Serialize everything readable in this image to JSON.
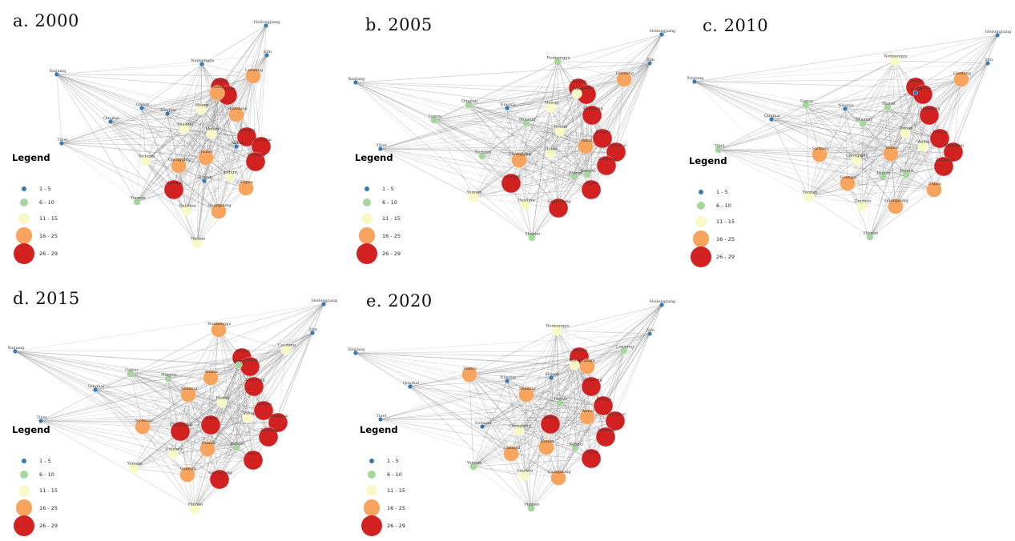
{
  "figure": {
    "background": "#ffffff",
    "edge_color": "#949494",
    "label_color": "#3a3a3a"
  },
  "legend": {
    "title": "Legend",
    "items": [
      {
        "label": "1 - 5",
        "color": "#3779b5",
        "radius": 3.4
      },
      {
        "label": "6 - 10",
        "color": "#a6d69e",
        "radius": 5
      },
      {
        "label": "11 - 15",
        "color": "#f9f9c8",
        "radius": 7
      },
      {
        "label": "16 - 25",
        "color": "#f7a55e",
        "radius": 10.3
      },
      {
        "label": "26 - 29",
        "color": "#d12121",
        "radius": 13
      }
    ]
  },
  "node_radii": [
    2.8,
    4.5,
    6.5,
    9.5,
    12
  ],
  "panels": [
    {
      "id": "a",
      "title": "a. 2000",
      "seed": 1,
      "nodes": [
        [
          "Heilongjiang",
          332,
          32,
          0
        ],
        [
          "Jilin",
          333,
          69,
          0
        ],
        [
          "Neimenggu",
          252,
          80,
          0
        ],
        [
          "Liaoning",
          316,
          95,
          3
        ],
        [
          "Xinjiang",
          71,
          93,
          0
        ],
        [
          "Beijing",
          275,
          109,
          4
        ],
        [
          "Hebei",
          271,
          116,
          3
        ],
        [
          "Tianjin",
          284,
          119,
          4
        ],
        [
          "Shanxi",
          251,
          137,
          2
        ],
        [
          "Gansu",
          177,
          135,
          0
        ],
        [
          "Ningxia",
          209,
          142,
          0
        ],
        [
          "Qinghai",
          138,
          152,
          0
        ],
        [
          "Tibet",
          77,
          179,
          0
        ],
        [
          "Shandong",
          295,
          143,
          3
        ],
        [
          "Shaanxi",
          230,
          161,
          2
        ],
        [
          "Henan",
          264,
          167,
          2
        ],
        [
          "Jiangsu",
          308,
          171,
          4
        ],
        [
          "Anhui",
          295,
          183,
          0
        ],
        [
          "Shanghai",
          326,
          183,
          4
        ],
        [
          "Zhejiang",
          319,
          202,
          4
        ],
        [
          "Hubei",
          257,
          197,
          3
        ],
        [
          "Sichuan",
          182,
          201,
          2
        ],
        [
          "Chongqing",
          223,
          207,
          3
        ],
        [
          "Hunan",
          255,
          226,
          0
        ],
        [
          "Jiangxi",
          287,
          221,
          2
        ],
        [
          "Fujian",
          307,
          235,
          3
        ],
        [
          "Guangxi",
          217,
          237,
          4
        ],
        [
          "Yunnan",
          171,
          252,
          1
        ],
        [
          "Guizhou",
          233,
          263,
          2
        ],
        [
          "Guangdong",
          273,
          264,
          3
        ],
        [
          "Hainan",
          246,
          304,
          2
        ]
      ]
    },
    {
      "id": "b",
      "title": "b. 2005",
      "seed": 2,
      "nodes": [
        [
          "Heilongjiang",
          826,
          43,
          0
        ],
        [
          "Jilin",
          811,
          79,
          0
        ],
        [
          "Liaoning",
          779,
          99,
          3
        ],
        [
          "Neimenggu",
          696,
          77,
          1
        ],
        [
          "Xinjiang",
          444,
          103,
          0
        ],
        [
          "Qinghai",
          585,
          131,
          1
        ],
        [
          "Gansu",
          542,
          150,
          1
        ],
        [
          "Ningxia",
          633,
          135,
          0
        ],
        [
          "Tibet",
          475,
          186,
          0
        ],
        [
          "Beijing",
          722,
          110,
          4
        ],
        [
          "Hebei",
          720,
          117,
          2
        ],
        [
          "Tianjin",
          732,
          118,
          4
        ],
        [
          "Shanxi",
          687,
          134,
          2
        ],
        [
          "Shandong",
          739,
          144,
          4
        ],
        [
          "Shaanxi",
          657,
          154,
          1
        ],
        [
          "Henan",
          699,
          164,
          2
        ],
        [
          "Jiangsu",
          752,
          173,
          4
        ],
        [
          "Anhui",
          731,
          183,
          3
        ],
        [
          "Shanghai",
          769,
          190,
          4
        ],
        [
          "Zhejiang",
          757,
          207,
          4
        ],
        [
          "Hubei",
          687,
          192,
          2
        ],
        [
          "Chongqing",
          648,
          200,
          3
        ],
        [
          "Sichuan",
          602,
          195,
          1
        ],
        [
          "Hunan",
          717,
          221,
          1
        ],
        [
          "Jiangxi",
          733,
          218,
          1
        ],
        [
          "Fujian",
          738,
          237,
          4
        ],
        [
          "Guangxi",
          638,
          229,
          4
        ],
        [
          "Guizhou",
          656,
          256,
          2
        ],
        [
          "Yunnan",
          591,
          246,
          2
        ],
        [
          "Guangdong",
          697,
          260,
          4
        ],
        [
          "Hainan",
          664,
          297,
          1
        ]
      ]
    },
    {
      "id": "c",
      "title": "c. 2010",
      "seed": 3,
      "nodes": [
        [
          "Heilongjiang",
          1245,
          44,
          0
        ],
        [
          "Jilin",
          1233,
          79,
          0
        ],
        [
          "Liaoning",
          1200,
          99,
          3
        ],
        [
          "Neimenggu",
          1117,
          76,
          2
        ],
        [
          "Xinjiang",
          867,
          102,
          0
        ],
        [
          "Qinghai",
          963,
          149,
          0
        ],
        [
          "Gansu",
          1006,
          131,
          1
        ],
        [
          "Ningxia",
          1055,
          136,
          0
        ],
        [
          "Tibet",
          897,
          187,
          1
        ],
        [
          "Beijing",
          1143,
          109,
          4
        ],
        [
          "Hebei",
          1143,
          116,
          0
        ],
        [
          "Tianjin",
          1152,
          118,
          4
        ],
        [
          "Shanxi",
          1108,
          134,
          1
        ],
        [
          "Shandong",
          1160,
          144,
          4
        ],
        [
          "Shaanxi",
          1077,
          154,
          1
        ],
        [
          "Henan",
          1130,
          166,
          2
        ],
        [
          "Jiangsu",
          1173,
          173,
          4
        ],
        [
          "Anhui",
          1152,
          183,
          2
        ],
        [
          "Shanghai",
          1190,
          190,
          4
        ],
        [
          "Zhejiang",
          1178,
          208,
          4
        ],
        [
          "Hubei",
          1112,
          192,
          3
        ],
        [
          "Chongqing",
          1069,
          200,
          2
        ],
        [
          "Sichuan",
          1023,
          193,
          3
        ],
        [
          "Hunan",
          1102,
          221,
          1
        ],
        [
          "Jiangxi",
          1131,
          218,
          1
        ],
        [
          "Fujian",
          1166,
          237,
          3
        ],
        [
          "Guangxi",
          1058,
          229,
          3
        ],
        [
          "Guizhou",
          1076,
          257,
          2
        ],
        [
          "Yunnan",
          1010,
          246,
          2
        ],
        [
          "Guangdong",
          1118,
          258,
          3
        ],
        [
          "Hainan",
          1086,
          296,
          1
        ]
      ]
    },
    {
      "id": "d",
      "title": "d. 2015",
      "seed": 4,
      "nodes": [
        [
          "Heilongjiang",
          404,
          380,
          0
        ],
        [
          "Jilin",
          390,
          416,
          0
        ],
        [
          "Liaoning",
          357,
          437,
          2
        ],
        [
          "Neimenggu",
          273,
          412,
          3
        ],
        [
          "Xinjiang",
          19,
          439,
          0
        ],
        [
          "Tibet",
          51,
          526,
          0
        ],
        [
          "Qinghai",
          119,
          487,
          0
        ],
        [
          "Gansu",
          163,
          467,
          1
        ],
        [
          "Ningxia",
          210,
          473,
          1
        ],
        [
          "Beijing",
          302,
          447,
          4
        ],
        [
          "Hebei",
          298,
          456,
          1
        ],
        [
          "Tianjin",
          312,
          458,
          4
        ],
        [
          "Shanxi",
          263,
          472,
          3
        ],
        [
          "Shandong",
          317,
          483,
          4
        ],
        [
          "Shaanxi",
          235,
          493,
          3
        ],
        [
          "Henan",
          277,
          503,
          2
        ],
        [
          "Jiangsu",
          329,
          513,
          4
        ],
        [
          "Anhui",
          309,
          522,
          2
        ],
        [
          "Shanghai",
          347,
          528,
          4
        ],
        [
          "Zhejiang",
          335,
          546,
          4
        ],
        [
          "Hubei",
          263,
          531,
          4
        ],
        [
          "Chongqing",
          225,
          539,
          4
        ],
        [
          "Sichuan",
          178,
          533,
          3
        ],
        [
          "Hunan",
          259,
          561,
          3
        ],
        [
          "Jiangxi",
          295,
          559,
          1
        ],
        [
          "Fujian",
          316,
          575,
          4
        ],
        [
          "Guizhou",
          216,
          567,
          2
        ],
        [
          "Guangxi",
          234,
          593,
          3
        ],
        [
          "Yunnan",
          167,
          585,
          2
        ],
        [
          "Guangdong",
          274,
          599,
          4
        ],
        [
          "Hainan",
          243,
          636,
          2
        ]
      ]
    },
    {
      "id": "e",
      "title": "e. 2020",
      "seed": 5,
      "nodes": [
        [
          "Heilongjiang",
          826,
          381,
          0
        ],
        [
          "Jilin",
          811,
          417,
          0
        ],
        [
          "Liaoning",
          779,
          438,
          1
        ],
        [
          "Neimenggu",
          695,
          413,
          2
        ],
        [
          "Xinjiang",
          444,
          441,
          0
        ],
        [
          "Tibet",
          475,
          524,
          0
        ],
        [
          "Qinghai",
          512,
          483,
          0
        ],
        [
          "Gansu",
          586,
          468,
          3
        ],
        [
          "Ningxia",
          633,
          476,
          0
        ],
        [
          "Beijing",
          723,
          446,
          4
        ],
        [
          "Hebei",
          717,
          456,
          2
        ],
        [
          "Tianjin",
          733,
          458,
          3
        ],
        [
          "Shanxi",
          688,
          472,
          0
        ],
        [
          "Shandong",
          738,
          483,
          4
        ],
        [
          "Shaanxi",
          657,
          493,
          3
        ],
        [
          "Henan",
          699,
          503,
          1
        ],
        [
          "Jiangsu",
          753,
          507,
          4
        ],
        [
          "Anhui",
          733,
          521,
          3
        ],
        [
          "Shanghai",
          768,
          526,
          4
        ],
        [
          "Zhejiang",
          756,
          546,
          4
        ],
        [
          "Hubei",
          687,
          530,
          4
        ],
        [
          "Chongqing",
          648,
          538,
          2
        ],
        [
          "Sichuan",
          602,
          533,
          0
        ],
        [
          "Hunan",
          682,
          559,
          3
        ],
        [
          "Jiangxi",
          718,
          560,
          1
        ],
        [
          "Fujian",
          738,
          573,
          4
        ],
        [
          "Guangxi",
          638,
          567,
          3
        ],
        [
          "Guizhou",
          654,
          594,
          2
        ],
        [
          "Yunnan",
          591,
          583,
          1
        ],
        [
          "Guangdong",
          697,
          597,
          3
        ],
        [
          "Hainan",
          663,
          635,
          1
        ]
      ]
    }
  ]
}
